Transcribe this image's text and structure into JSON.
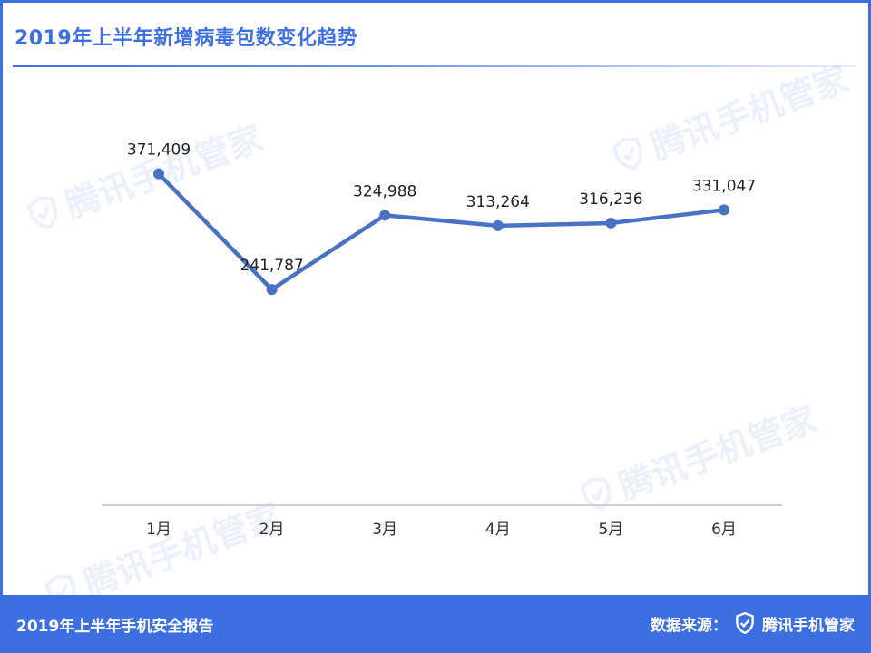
{
  "header": {
    "title": "2019年上半年新增病毒包数变化趋势"
  },
  "footer": {
    "report": "2019年上半年手机安全报告",
    "source_label": "数据来源：",
    "brand": "腾讯手机管家"
  },
  "watermark": {
    "text": "腾讯手机管家"
  },
  "colors": {
    "accent": "#3e6fe0",
    "line": "#4a72c4",
    "axis": "#cfcfcf"
  },
  "chart_data": {
    "type": "line",
    "categories": [
      "1月",
      "2月",
      "3月",
      "4月",
      "5月",
      "6月"
    ],
    "series": [
      {
        "values": [
          371409,
          241787,
          324988,
          313264,
          316236,
          331047
        ],
        "labels": [
          "371,409",
          "241,787",
          "324,988",
          "313,264",
          "316,236",
          "331,047"
        ]
      }
    ],
    "ylim": [
      0,
      550000
    ],
    "grid": false,
    "legend": "none"
  }
}
